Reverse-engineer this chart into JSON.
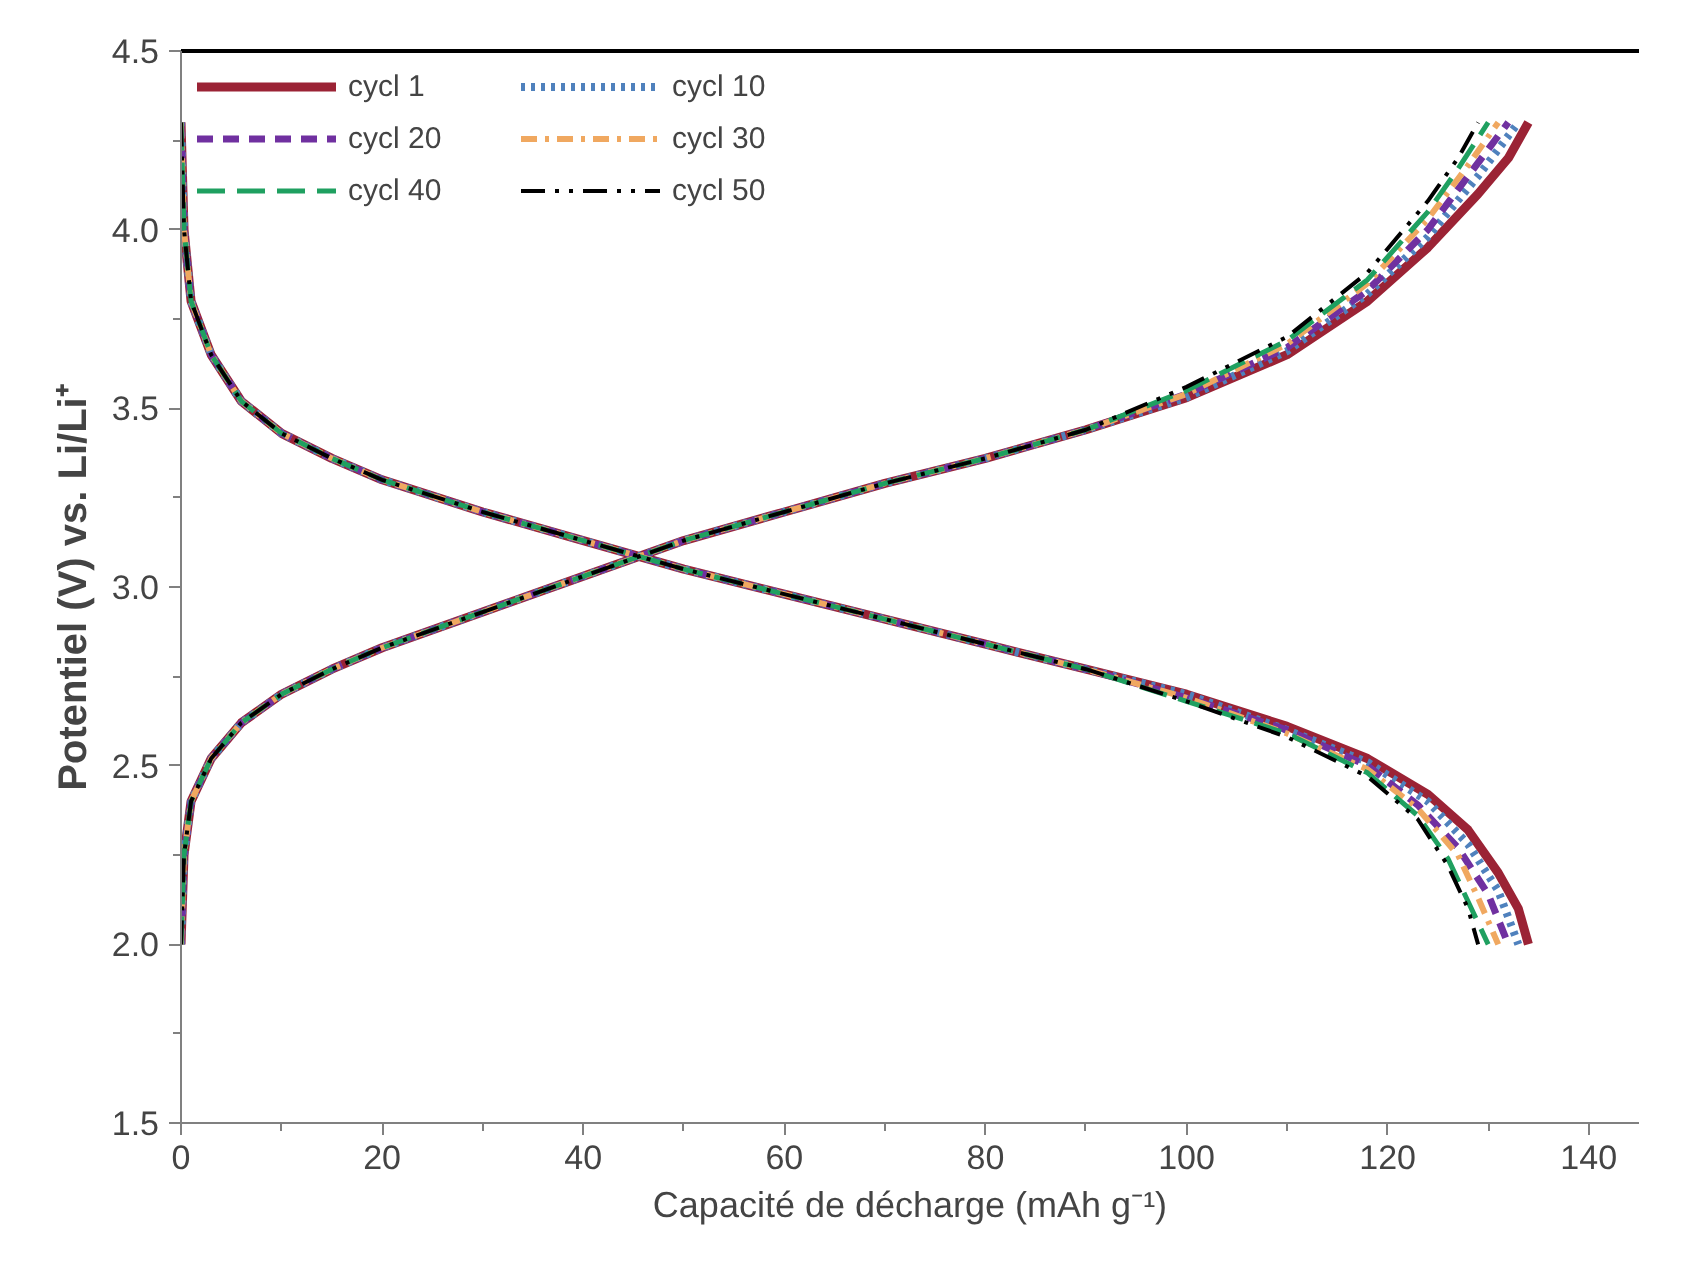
{
  "chart_data": {
    "type": "line",
    "xlabel": "Capacité de décharge (mAh g⁻¹)",
    "ylabel": "Potentiel (V) vs. Li/Li⁺",
    "xlim": [
      0,
      145
    ],
    "xticks": [
      0,
      20,
      40,
      60,
      80,
      100,
      120,
      140
    ],
    "ylim": [
      1.5,
      4.5
    ],
    "yticks": [
      {
        "value": 1.5,
        "label": "1.5"
      },
      {
        "value": 2.0,
        "label": "2.0"
      },
      {
        "value": 2.5,
        "label": "2.5"
      },
      {
        "value": 3.0,
        "label": "3.0"
      },
      {
        "value": 3.5,
        "label": "3.5"
      },
      {
        "value": 4.0,
        "label": "4.0"
      },
      {
        "value": 4.5,
        "label": "4.5"
      }
    ],
    "grid": false,
    "legend": "top left",
    "marker": "none",
    "series": [
      {
        "name": "cycl 1",
        "color": "#9b2335",
        "line_style": "solid",
        "x": [
          0,
          0.3,
          1,
          3,
          6,
          10,
          15,
          20,
          30,
          40,
          50,
          60,
          70,
          80,
          90,
          100,
          110,
          118,
          124,
          128,
          131,
          133,
          134,
          null,
          0,
          0.3,
          1,
          3,
          6,
          10,
          15,
          20,
          30,
          40,
          50,
          60,
          70,
          80,
          90,
          100,
          110,
          118,
          124,
          129,
          132,
          134
        ],
        "values": [
          4.3,
          4.0,
          3.8,
          3.65,
          3.52,
          3.43,
          3.36,
          3.3,
          3.21,
          3.13,
          3.05,
          2.98,
          2.91,
          2.84,
          2.77,
          2.7,
          2.61,
          2.52,
          2.42,
          2.32,
          2.2,
          2.1,
          2.0,
          null,
          2.0,
          2.25,
          2.4,
          2.52,
          2.62,
          2.7,
          2.77,
          2.83,
          2.93,
          3.03,
          3.13,
          3.21,
          3.29,
          3.36,
          3.44,
          3.53,
          3.65,
          3.8,
          3.95,
          4.1,
          4.2,
          4.3
        ]
      },
      {
        "name": "cycl 10",
        "color": "#4f81bd",
        "line_style": "dotted",
        "x": [
          0,
          0.3,
          1,
          3,
          6,
          10,
          15,
          20,
          30,
          40,
          50,
          60,
          70,
          80,
          90,
          100,
          110,
          118,
          124,
          128,
          131,
          133,
          null,
          0,
          0.3,
          1,
          3,
          6,
          10,
          15,
          20,
          30,
          40,
          50,
          60,
          70,
          80,
          90,
          100,
          110,
          118,
          124,
          129,
          133
        ],
        "values": [
          4.3,
          4.0,
          3.8,
          3.65,
          3.52,
          3.43,
          3.36,
          3.3,
          3.21,
          3.13,
          3.05,
          2.98,
          2.91,
          2.84,
          2.77,
          2.7,
          2.6,
          2.51,
          2.4,
          2.28,
          2.15,
          2.0,
          null,
          2.0,
          2.25,
          2.4,
          2.52,
          2.62,
          2.7,
          2.77,
          2.83,
          2.93,
          3.03,
          3.13,
          3.21,
          3.29,
          3.36,
          3.44,
          3.53,
          3.66,
          3.82,
          3.98,
          4.15,
          4.3
        ]
      },
      {
        "name": "cycl 20",
        "color": "#7030a0",
        "line_style": "dashed",
        "x": [
          0,
          0.3,
          1,
          3,
          6,
          10,
          15,
          20,
          30,
          40,
          50,
          60,
          70,
          80,
          90,
          100,
          110,
          118,
          123,
          127,
          130,
          132,
          null,
          0,
          0.3,
          1,
          3,
          6,
          10,
          15,
          20,
          30,
          40,
          50,
          60,
          70,
          80,
          90,
          100,
          110,
          118,
          124,
          128,
          132
        ],
        "values": [
          4.3,
          4.0,
          3.8,
          3.65,
          3.52,
          3.43,
          3.36,
          3.3,
          3.21,
          3.13,
          3.05,
          2.98,
          2.91,
          2.84,
          2.77,
          2.69,
          2.6,
          2.5,
          2.39,
          2.27,
          2.14,
          2.0,
          null,
          2.0,
          2.25,
          2.4,
          2.52,
          2.62,
          2.7,
          2.77,
          2.83,
          2.93,
          3.03,
          3.13,
          3.21,
          3.29,
          3.36,
          3.44,
          3.54,
          3.67,
          3.83,
          4.0,
          4.15,
          4.3
        ]
      },
      {
        "name": "cycl 30",
        "color": "#f0a860",
        "line_style": "dashdot",
        "x": [
          0,
          0.3,
          1,
          3,
          6,
          10,
          15,
          20,
          30,
          40,
          50,
          60,
          70,
          80,
          90,
          100,
          110,
          118,
          123,
          127,
          129,
          131,
          null,
          0,
          0.3,
          1,
          3,
          6,
          10,
          15,
          20,
          30,
          40,
          50,
          60,
          70,
          80,
          90,
          100,
          110,
          118,
          124,
          128,
          131
        ],
        "values": [
          4.3,
          4.0,
          3.8,
          3.65,
          3.52,
          3.43,
          3.36,
          3.3,
          3.21,
          3.13,
          3.05,
          2.98,
          2.91,
          2.84,
          2.77,
          2.69,
          2.59,
          2.49,
          2.38,
          2.25,
          2.13,
          2.0,
          null,
          2.0,
          2.25,
          2.4,
          2.52,
          2.62,
          2.7,
          2.77,
          2.83,
          2.93,
          3.03,
          3.13,
          3.21,
          3.29,
          3.36,
          3.44,
          3.54,
          3.68,
          3.85,
          4.03,
          4.18,
          4.3
        ]
      },
      {
        "name": "cycl 40",
        "color": "#1fa060",
        "line_style": "longdash",
        "x": [
          0,
          0.3,
          1,
          3,
          6,
          10,
          15,
          20,
          30,
          40,
          50,
          60,
          70,
          80,
          90,
          100,
          110,
          118,
          123,
          126,
          128,
          130,
          null,
          0,
          0.3,
          1,
          3,
          6,
          10,
          15,
          20,
          30,
          40,
          50,
          60,
          70,
          80,
          90,
          100,
          110,
          118,
          124,
          127,
          130
        ],
        "values": [
          4.3,
          4.0,
          3.8,
          3.65,
          3.52,
          3.43,
          3.36,
          3.3,
          3.21,
          3.13,
          3.05,
          2.98,
          2.91,
          2.84,
          2.77,
          2.68,
          2.59,
          2.48,
          2.36,
          2.24,
          2.12,
          2.0,
          null,
          2.0,
          2.25,
          2.4,
          2.52,
          2.62,
          2.7,
          2.77,
          2.83,
          2.93,
          3.03,
          3.13,
          3.21,
          3.29,
          3.36,
          3.44,
          3.55,
          3.69,
          3.86,
          4.05,
          4.17,
          4.3
        ]
      },
      {
        "name": "cycl 50",
        "color": "#000000",
        "line_style": "dashdotdot",
        "x": [
          0,
          0.3,
          1,
          3,
          6,
          10,
          15,
          20,
          30,
          40,
          50,
          60,
          70,
          80,
          90,
          100,
          110,
          118,
          123,
          126,
          128,
          129,
          null,
          0,
          0.3,
          1,
          3,
          6,
          10,
          15,
          20,
          30,
          40,
          50,
          60,
          70,
          80,
          90,
          100,
          110,
          118,
          124,
          127,
          129
        ],
        "values": [
          4.3,
          4.0,
          3.8,
          3.65,
          3.52,
          3.43,
          3.36,
          3.3,
          3.21,
          3.13,
          3.05,
          2.98,
          2.91,
          2.84,
          2.77,
          2.68,
          2.58,
          2.47,
          2.35,
          2.22,
          2.1,
          2.0,
          null,
          2.0,
          2.25,
          2.4,
          2.52,
          2.62,
          2.7,
          2.77,
          2.83,
          2.93,
          3.03,
          3.13,
          3.21,
          3.29,
          3.36,
          3.44,
          3.56,
          3.7,
          3.88,
          4.08,
          4.2,
          4.3
        ]
      }
    ]
  }
}
